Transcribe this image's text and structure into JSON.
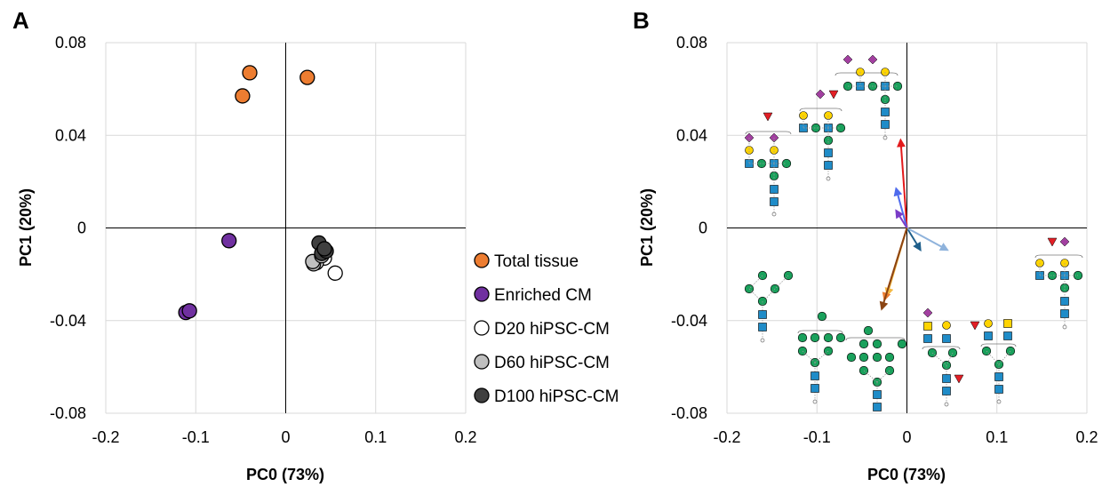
{
  "chart_data": [
    {
      "panel": "A",
      "type": "scatter",
      "xlabel": "PC0 (73%)",
      "ylabel": "PC1 (20%)",
      "xlim": [
        -0.2,
        0.2
      ],
      "ylim": [
        -0.08,
        0.08
      ],
      "xticks": [
        -0.2,
        -0.1,
        0,
        0.1,
        0.2
      ],
      "xtick_labels": [
        "-0.2",
        "-0.1",
        "0",
        "0.1",
        "0.2"
      ],
      "yticks": [
        0.08,
        0.04,
        0,
        -0.04,
        -0.08
      ],
      "ytick_labels": [
        "0.08",
        "0.04",
        "0",
        "-0.04",
        "-0.08"
      ],
      "grid": true,
      "legend_position": "right",
      "series": [
        {
          "name": "Total tissue",
          "color": "#ed7d31",
          "points": [
            [
              -0.04,
              0.067
            ],
            [
              -0.048,
              0.057
            ],
            [
              0.024,
              0.065
            ]
          ]
        },
        {
          "name": "Enriched CM",
          "color": "#7030a0",
          "points": [
            [
              -0.063,
              -0.0055
            ],
            [
              -0.111,
              -0.0365
            ],
            [
              -0.107,
              -0.0358
            ]
          ]
        },
        {
          "name": "D20 hiPSC-CM",
          "color": "#ffffff",
          "points": [
            [
              0.055,
              -0.0195
            ],
            [
              0.043,
              -0.013
            ],
            [
              0.034,
              -0.015
            ]
          ]
        },
        {
          "name": "D60 hiPSC-CM",
          "color": "#bfbfbf",
          "points": [
            [
              0.031,
              -0.0155
            ],
            [
              0.03,
              -0.0145
            ],
            [
              0.04,
              -0.012
            ]
          ]
        },
        {
          "name": "D100 hiPSC-CM",
          "color": "#404040",
          "points": [
            [
              0.037,
              -0.0065
            ],
            [
              0.04,
              -0.011
            ],
            [
              0.045,
              -0.01
            ],
            [
              0.043,
              -0.009
            ]
          ]
        }
      ]
    },
    {
      "panel": "B",
      "type": "scatter",
      "xlabel": "PC0 (73%)",
      "ylabel": "PC1 (20%)",
      "xlim": [
        -0.2,
        0.2
      ],
      "ylim": [
        -0.08,
        0.08
      ],
      "xticks": [
        -0.2,
        -0.1,
        0,
        0.1,
        0.2
      ],
      "xtick_labels": [
        "-0.2",
        "-0.1",
        "0",
        "0.1",
        "0.2"
      ],
      "yticks": [
        0.08,
        0.04,
        0,
        -0.04,
        -0.08
      ],
      "ytick_labels": [
        "0.08",
        "0.04",
        "0",
        "-0.04",
        "-0.08"
      ],
      "grid": true,
      "loading_vectors": [
        {
          "color": "#e31a1c",
          "end": [
            -0.007,
            0.038
          ]
        },
        {
          "color": "#4f6bed",
          "end": [
            -0.012,
            0.017
          ]
        },
        {
          "color": "#7a3cc7",
          "end": [
            -0.012,
            0.0075
          ]
        },
        {
          "color": "#1f5f8b",
          "end": [
            0.015,
            -0.0095
          ]
        },
        {
          "color": "#8fb3dc",
          "end": [
            0.045,
            -0.0095
          ]
        },
        {
          "color": "#f4b942",
          "end": [
            -0.022,
            -0.029
          ]
        },
        {
          "color": "#ed7d31",
          "end": [
            -0.025,
            -0.031
          ]
        },
        {
          "color": "#8b4513",
          "end": [
            -0.028,
            -0.035
          ]
        }
      ]
    }
  ]
}
